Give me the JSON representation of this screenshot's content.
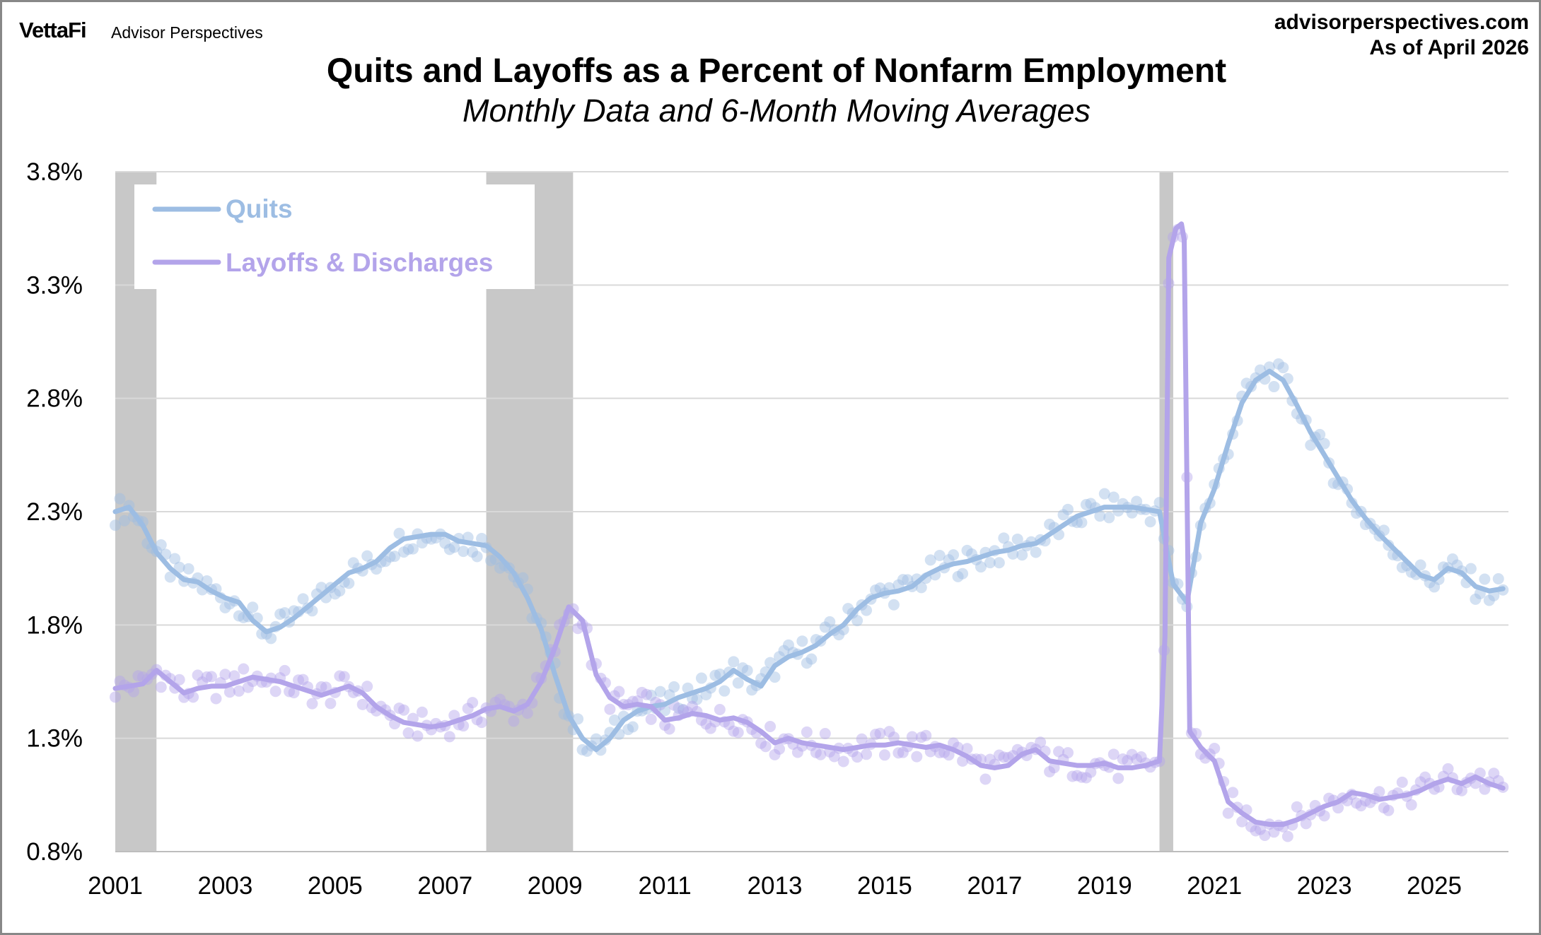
{
  "header": {
    "brand": "VettaFi",
    "brand_sub": "Advisor Perspectives",
    "site": "advisorperspectives.com",
    "as_of": "As of April 2026"
  },
  "colors": {
    "quits": "#9dbde3",
    "layoffs": "#b3a4ea",
    "recession": "#c8c8c8",
    "grid": "#d9d9d9"
  },
  "chart_data": {
    "type": "line",
    "title": "Quits and Layoffs as a Percent of Nonfarm Employment",
    "subtitle": "Monthly Data and 6-Month Moving Averages",
    "xlabel": "",
    "ylabel": "",
    "ylim": [
      0.8,
      3.8
    ],
    "xlim": [
      2001.0,
      2026.35
    ],
    "y_ticks": [
      "3.8%",
      "3.3%",
      "2.8%",
      "2.3%",
      "1.8%",
      "1.3%",
      "0.8%"
    ],
    "x_ticks": [
      "2001",
      "2003",
      "2005",
      "2007",
      "2009",
      "2011",
      "2013",
      "2015",
      "2017",
      "2019",
      "2021",
      "2023",
      "2025"
    ],
    "grid": true,
    "legend_position": "top-left",
    "recessions": [
      [
        2001.0,
        2001.75
      ],
      [
        2007.75,
        2009.33
      ],
      [
        2020.0,
        2020.25
      ]
    ],
    "series": [
      {
        "name": "Quits",
        "kind": "6-month moving average with monthly scatter",
        "points": [
          [
            2001.0,
            2.3
          ],
          [
            2001.25,
            2.32
          ],
          [
            2001.5,
            2.24
          ],
          [
            2001.75,
            2.12
          ],
          [
            2002.0,
            2.05
          ],
          [
            2002.25,
            2.0
          ],
          [
            2002.5,
            1.99
          ],
          [
            2002.75,
            1.95
          ],
          [
            2003.0,
            1.92
          ],
          [
            2003.25,
            1.9
          ],
          [
            2003.5,
            1.82
          ],
          [
            2003.75,
            1.77
          ],
          [
            2004.0,
            1.79
          ],
          [
            2004.25,
            1.83
          ],
          [
            2004.5,
            1.88
          ],
          [
            2004.75,
            1.93
          ],
          [
            2005.0,
            1.98
          ],
          [
            2005.25,
            2.03
          ],
          [
            2005.5,
            2.05
          ],
          [
            2005.75,
            2.08
          ],
          [
            2006.0,
            2.14
          ],
          [
            2006.25,
            2.18
          ],
          [
            2006.5,
            2.19
          ],
          [
            2006.75,
            2.2
          ],
          [
            2007.0,
            2.2
          ],
          [
            2007.25,
            2.17
          ],
          [
            2007.5,
            2.16
          ],
          [
            2007.75,
            2.15
          ],
          [
            2008.0,
            2.1
          ],
          [
            2008.25,
            2.03
          ],
          [
            2008.5,
            1.92
          ],
          [
            2008.75,
            1.78
          ],
          [
            2009.0,
            1.58
          ],
          [
            2009.25,
            1.4
          ],
          [
            2009.5,
            1.3
          ],
          [
            2009.75,
            1.25
          ],
          [
            2010.0,
            1.3
          ],
          [
            2010.25,
            1.38
          ],
          [
            2010.5,
            1.42
          ],
          [
            2010.75,
            1.44
          ],
          [
            2011.0,
            1.45
          ],
          [
            2011.25,
            1.48
          ],
          [
            2011.5,
            1.5
          ],
          [
            2011.75,
            1.52
          ],
          [
            2012.0,
            1.55
          ],
          [
            2012.25,
            1.6
          ],
          [
            2012.5,
            1.56
          ],
          [
            2012.75,
            1.53
          ],
          [
            2013.0,
            1.62
          ],
          [
            2013.25,
            1.66
          ],
          [
            2013.5,
            1.68
          ],
          [
            2013.75,
            1.71
          ],
          [
            2014.0,
            1.76
          ],
          [
            2014.25,
            1.8
          ],
          [
            2014.5,
            1.87
          ],
          [
            2014.75,
            1.92
          ],
          [
            2015.0,
            1.94
          ],
          [
            2015.25,
            1.95
          ],
          [
            2015.5,
            1.97
          ],
          [
            2015.75,
            2.02
          ],
          [
            2016.0,
            2.05
          ],
          [
            2016.25,
            2.07
          ],
          [
            2016.5,
            2.08
          ],
          [
            2016.75,
            2.1
          ],
          [
            2017.0,
            2.12
          ],
          [
            2017.25,
            2.13
          ],
          [
            2017.5,
            2.15
          ],
          [
            2017.75,
            2.16
          ],
          [
            2018.0,
            2.2
          ],
          [
            2018.25,
            2.24
          ],
          [
            2018.5,
            2.28
          ],
          [
            2018.75,
            2.3
          ],
          [
            2019.0,
            2.32
          ],
          [
            2019.25,
            2.32
          ],
          [
            2019.5,
            2.32
          ],
          [
            2019.75,
            2.31
          ],
          [
            2020.0,
            2.3
          ],
          [
            2020.25,
            1.98
          ],
          [
            2020.5,
            1.9
          ],
          [
            2020.75,
            2.25
          ],
          [
            2021.0,
            2.4
          ],
          [
            2021.25,
            2.6
          ],
          [
            2021.5,
            2.78
          ],
          [
            2021.75,
            2.88
          ],
          [
            2022.0,
            2.92
          ],
          [
            2022.25,
            2.88
          ],
          [
            2022.5,
            2.77
          ],
          [
            2022.75,
            2.65
          ],
          [
            2023.0,
            2.55
          ],
          [
            2023.25,
            2.45
          ],
          [
            2023.5,
            2.35
          ],
          [
            2023.75,
            2.27
          ],
          [
            2024.0,
            2.2
          ],
          [
            2024.25,
            2.14
          ],
          [
            2024.5,
            2.08
          ],
          [
            2024.75,
            2.02
          ],
          [
            2025.0,
            2.0
          ],
          [
            2025.25,
            2.05
          ],
          [
            2025.5,
            2.03
          ],
          [
            2025.75,
            1.97
          ],
          [
            2026.0,
            1.95
          ],
          [
            2026.25,
            1.96
          ]
        ]
      },
      {
        "name": "Layoffs & Discharges",
        "kind": "6-month moving average with monthly scatter",
        "points": [
          [
            2001.0,
            1.52
          ],
          [
            2001.25,
            1.53
          ],
          [
            2001.5,
            1.54
          ],
          [
            2001.75,
            1.6
          ],
          [
            2002.0,
            1.55
          ],
          [
            2002.25,
            1.5
          ],
          [
            2002.5,
            1.52
          ],
          [
            2002.75,
            1.53
          ],
          [
            2003.0,
            1.53
          ],
          [
            2003.25,
            1.55
          ],
          [
            2003.5,
            1.57
          ],
          [
            2003.75,
            1.56
          ],
          [
            2004.0,
            1.55
          ],
          [
            2004.25,
            1.53
          ],
          [
            2004.5,
            1.51
          ],
          [
            2004.75,
            1.49
          ],
          [
            2005.0,
            1.51
          ],
          [
            2005.25,
            1.53
          ],
          [
            2005.5,
            1.5
          ],
          [
            2005.75,
            1.44
          ],
          [
            2006.0,
            1.4
          ],
          [
            2006.25,
            1.37
          ],
          [
            2006.5,
            1.36
          ],
          [
            2006.75,
            1.35
          ],
          [
            2007.0,
            1.36
          ],
          [
            2007.25,
            1.38
          ],
          [
            2007.5,
            1.4
          ],
          [
            2007.75,
            1.43
          ],
          [
            2008.0,
            1.44
          ],
          [
            2008.25,
            1.42
          ],
          [
            2008.5,
            1.45
          ],
          [
            2008.75,
            1.55
          ],
          [
            2009.0,
            1.7
          ],
          [
            2009.25,
            1.88
          ],
          [
            2009.5,
            1.82
          ],
          [
            2009.75,
            1.58
          ],
          [
            2010.0,
            1.48
          ],
          [
            2010.25,
            1.44
          ],
          [
            2010.5,
            1.45
          ],
          [
            2010.75,
            1.44
          ],
          [
            2011.0,
            1.38
          ],
          [
            2011.25,
            1.39
          ],
          [
            2011.5,
            1.41
          ],
          [
            2011.75,
            1.4
          ],
          [
            2012.0,
            1.38
          ],
          [
            2012.25,
            1.39
          ],
          [
            2012.5,
            1.37
          ],
          [
            2012.75,
            1.33
          ],
          [
            2013.0,
            1.28
          ],
          [
            2013.25,
            1.3
          ],
          [
            2013.5,
            1.28
          ],
          [
            2013.75,
            1.27
          ],
          [
            2014.0,
            1.26
          ],
          [
            2014.25,
            1.25
          ],
          [
            2014.5,
            1.26
          ],
          [
            2014.75,
            1.27
          ],
          [
            2015.0,
            1.27
          ],
          [
            2015.25,
            1.28
          ],
          [
            2015.5,
            1.27
          ],
          [
            2015.75,
            1.26
          ],
          [
            2016.0,
            1.27
          ],
          [
            2016.25,
            1.25
          ],
          [
            2016.5,
            1.22
          ],
          [
            2016.75,
            1.18
          ],
          [
            2017.0,
            1.17
          ],
          [
            2017.25,
            1.18
          ],
          [
            2017.5,
            1.23
          ],
          [
            2017.75,
            1.25
          ],
          [
            2018.0,
            1.2
          ],
          [
            2018.25,
            1.19
          ],
          [
            2018.5,
            1.18
          ],
          [
            2018.75,
            1.18
          ],
          [
            2019.0,
            1.19
          ],
          [
            2019.25,
            1.17
          ],
          [
            2019.5,
            1.17
          ],
          [
            2019.75,
            1.18
          ],
          [
            2020.0,
            1.2
          ],
          [
            2020.1,
            1.75
          ],
          [
            2020.17,
            3.42
          ],
          [
            2020.3,
            3.55
          ],
          [
            2020.4,
            3.57
          ],
          [
            2020.45,
            3.5
          ],
          [
            2020.55,
            1.33
          ],
          [
            2020.75,
            1.26
          ],
          [
            2021.0,
            1.2
          ],
          [
            2021.25,
            1.02
          ],
          [
            2021.5,
            0.97
          ],
          [
            2021.75,
            0.93
          ],
          [
            2022.0,
            0.92
          ],
          [
            2022.25,
            0.92
          ],
          [
            2022.5,
            0.94
          ],
          [
            2022.75,
            0.97
          ],
          [
            2023.0,
            1.0
          ],
          [
            2023.25,
            1.02
          ],
          [
            2023.5,
            1.06
          ],
          [
            2023.75,
            1.05
          ],
          [
            2024.0,
            1.03
          ],
          [
            2024.25,
            1.04
          ],
          [
            2024.5,
            1.05
          ],
          [
            2024.75,
            1.07
          ],
          [
            2025.0,
            1.1
          ],
          [
            2025.25,
            1.12
          ],
          [
            2025.5,
            1.1
          ],
          [
            2025.75,
            1.13
          ],
          [
            2026.0,
            1.1
          ],
          [
            2026.25,
            1.08
          ]
        ]
      }
    ]
  }
}
